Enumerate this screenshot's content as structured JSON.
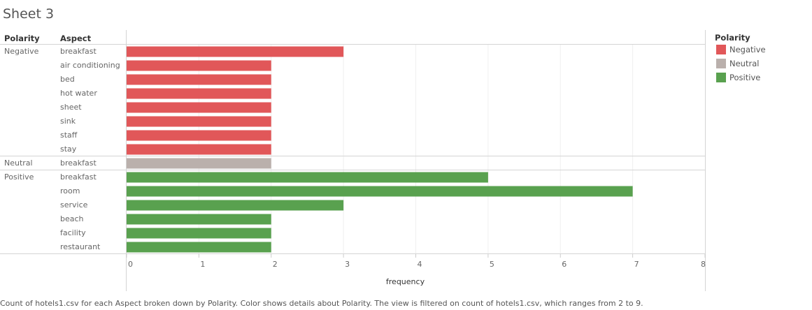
{
  "sheet": {
    "title": "Sheet 3"
  },
  "headers": {
    "polarity": "Polarity",
    "aspect": "Aspect"
  },
  "legend": {
    "title": "Polarity",
    "items": [
      {
        "label": "Negative",
        "color": "#e15759"
      },
      {
        "label": "Neutral",
        "color": "#bab0ac"
      },
      {
        "label": "Positive",
        "color": "#59a14f"
      }
    ]
  },
  "footer": {
    "text": "Count of hotels1.csv for each Aspect broken down by Polarity.  Color shows details about Polarity. The view is filtered on count of hotels1.csv, which ranges from 2 to 9."
  },
  "chart_data": {
    "type": "bar",
    "orientation": "horizontal",
    "xlabel": "frequency",
    "xlim": [
      0,
      8
    ],
    "xticks": [
      0,
      1,
      2,
      3,
      4,
      5,
      6,
      7,
      8
    ],
    "grid": true,
    "groups": [
      {
        "name": "Negative",
        "color": "#e15759",
        "categories": [
          "breakfast",
          "air conditioning",
          "bed",
          "hot water",
          "sheet",
          "sink",
          "staff",
          "stay"
        ],
        "values": [
          3,
          2,
          2,
          2,
          2,
          2,
          2,
          2
        ]
      },
      {
        "name": "Neutral",
        "color": "#bab0ac",
        "categories": [
          "breakfast"
        ],
        "values": [
          2
        ]
      },
      {
        "name": "Positive",
        "color": "#59a14f",
        "categories": [
          "breakfast",
          "room",
          "service",
          "beach",
          "facility",
          "restaurant"
        ],
        "values": [
          5,
          7,
          3,
          2,
          2,
          2
        ]
      }
    ]
  }
}
